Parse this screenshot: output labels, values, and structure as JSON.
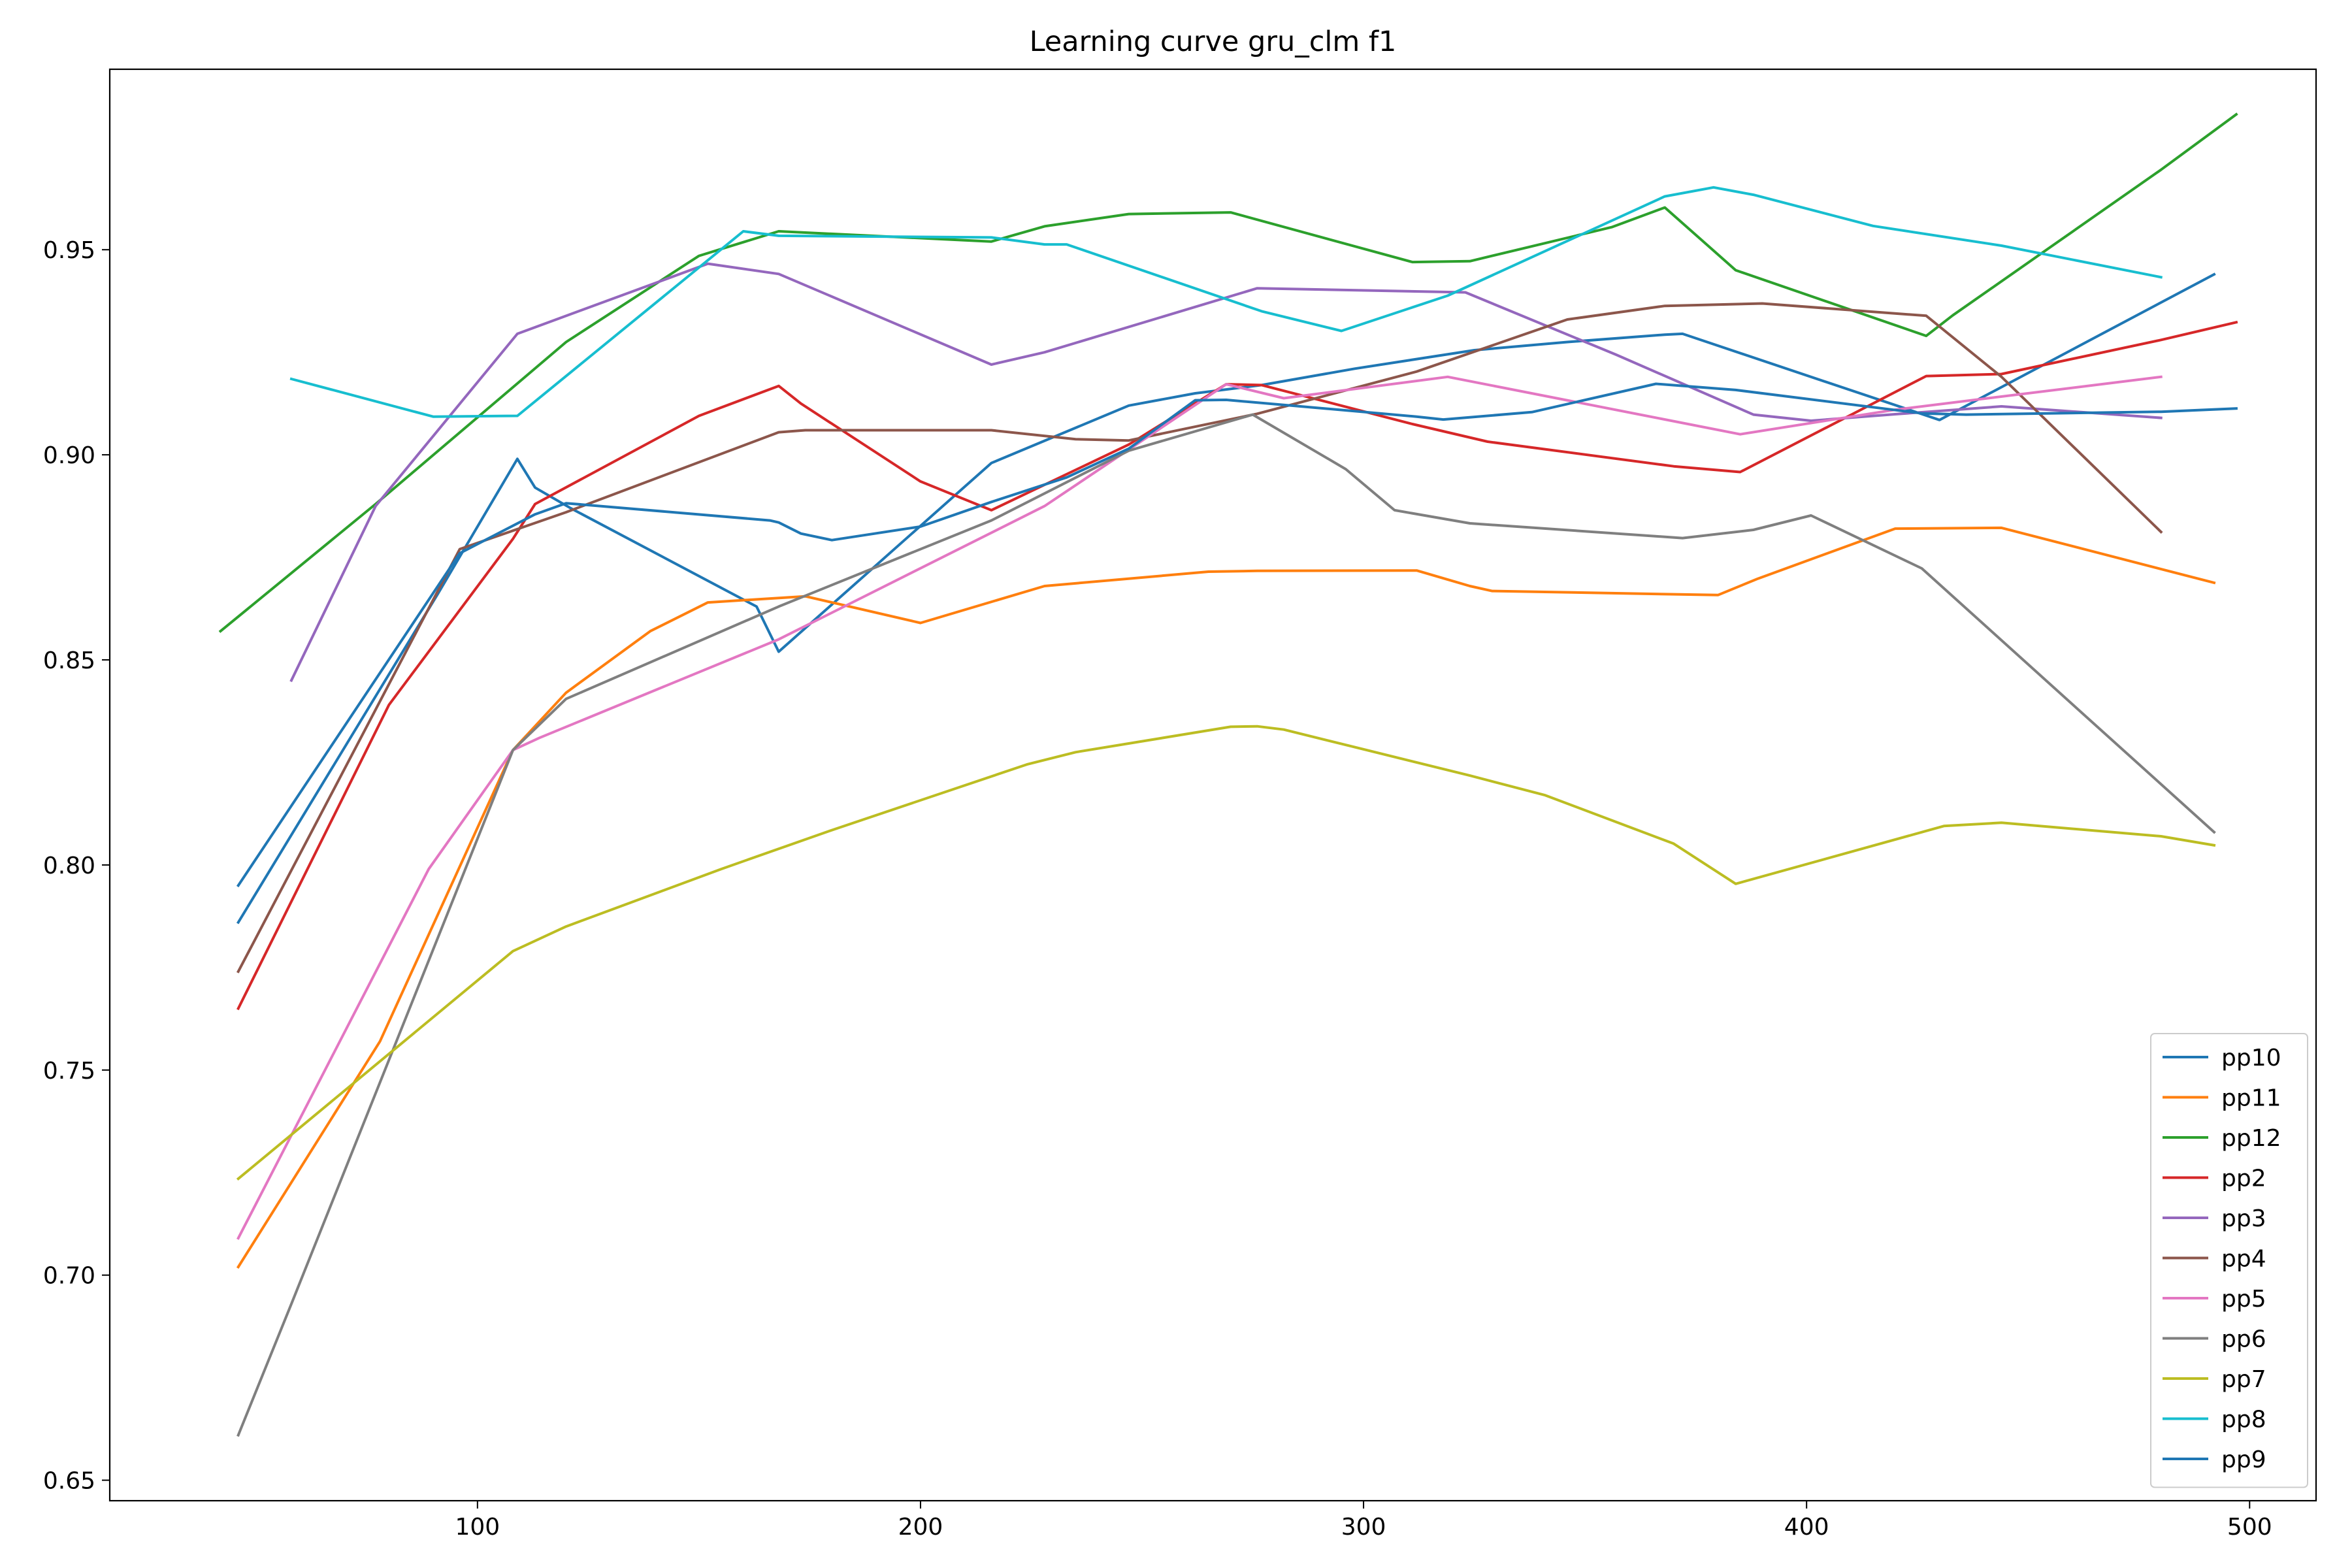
{
  "chart_data": {
    "type": "line",
    "title": "Learning curve gru_clm f1",
    "xlabel": "",
    "ylabel": "",
    "xlim": [
      17,
      515
    ],
    "ylim": [
      0.645,
      0.994
    ],
    "xticks": [
      100,
      200,
      300,
      400,
      500
    ],
    "yticks": [
      0.65,
      0.7,
      0.75,
      0.8,
      0.85,
      0.9,
      0.95
    ],
    "ytick_labels": [
      "0.65",
      "0.70",
      "0.75",
      "0.80",
      "0.85",
      "0.90",
      "0.95"
    ],
    "xtick_labels": [
      "100",
      "200",
      "300",
      "400",
      "500"
    ],
    "grid": false,
    "legend_position": "lower-right",
    "series": [
      {
        "name": "pp10",
        "color": "#1f77b4",
        "points": [
          [
            46,
            0.786
          ],
          [
            91,
            0.866
          ],
          [
            109,
            0.899
          ],
          [
            113,
            0.892
          ],
          [
            121,
            0.887
          ],
          [
            163,
            0.863
          ],
          [
            168,
            0.852
          ],
          [
            216,
            0.898
          ],
          [
            247,
            0.912
          ],
          [
            262,
            0.915
          ],
          [
            277,
            0.917
          ],
          [
            298,
            0.921
          ],
          [
            325,
            0.9255
          ],
          [
            346,
            0.9275
          ],
          [
            368,
            0.9293
          ],
          [
            372,
            0.9295
          ],
          [
            430,
            0.9085
          ],
          [
            492,
            0.944
          ]
        ]
      },
      {
        "name": "pp11",
        "color": "#ff7f0e",
        "points": [
          [
            46,
            0.702
          ],
          [
            78,
            0.757
          ],
          [
            108,
            0.828
          ],
          [
            120,
            0.842
          ],
          [
            139,
            0.857
          ],
          [
            152,
            0.864
          ],
          [
            174,
            0.8655
          ],
          [
            200,
            0.859
          ],
          [
            228,
            0.868
          ],
          [
            265,
            0.8715
          ],
          [
            276,
            0.8717
          ],
          [
            312,
            0.8718
          ],
          [
            324,
            0.868
          ],
          [
            329,
            0.8668
          ],
          [
            380,
            0.8658
          ],
          [
            389,
            0.8698
          ],
          [
            420,
            0.882
          ],
          [
            444,
            0.8822
          ],
          [
            492,
            0.8688
          ]
        ]
      },
      {
        "name": "pp12",
        "color": "#2ca02c",
        "points": [
          [
            42,
            0.857
          ],
          [
            77,
            0.888
          ],
          [
            120,
            0.9275
          ],
          [
            150,
            0.9485
          ],
          [
            168,
            0.9545
          ],
          [
            216,
            0.952
          ],
          [
            228,
            0.9557
          ],
          [
            247,
            0.9587
          ],
          [
            270,
            0.9591
          ],
          [
            311,
            0.947
          ],
          [
            324,
            0.9472
          ],
          [
            356,
            0.9555
          ],
          [
            368,
            0.9603
          ],
          [
            384,
            0.945
          ],
          [
            427,
            0.929
          ],
          [
            433,
            0.934
          ],
          [
            480,
            0.9695
          ],
          [
            497,
            0.983
          ]
        ]
      },
      {
        "name": "pp2",
        "color": "#d62728",
        "points": [
          [
            46,
            0.765
          ],
          [
            80,
            0.839
          ],
          [
            108,
            0.8795
          ],
          [
            113,
            0.888
          ],
          [
            150,
            0.9095
          ],
          [
            168,
            0.9168
          ],
          [
            173,
            0.9125
          ],
          [
            200,
            0.8935
          ],
          [
            216,
            0.8865
          ],
          [
            247,
            0.9025
          ],
          [
            269,
            0.9172
          ],
          [
            277,
            0.917
          ],
          [
            311,
            0.9075
          ],
          [
            328,
            0.9032
          ],
          [
            370,
            0.8972
          ],
          [
            385,
            0.8958
          ],
          [
            427,
            0.9192
          ],
          [
            444,
            0.9197
          ],
          [
            480,
            0.928
          ],
          [
            497,
            0.9323
          ]
        ]
      },
      {
        "name": "pp3",
        "color": "#9467bd",
        "points": [
          [
            58,
            0.845
          ],
          [
            77,
            0.8875
          ],
          [
            109,
            0.9295
          ],
          [
            152,
            0.9466
          ],
          [
            168,
            0.9441
          ],
          [
            216,
            0.922
          ],
          [
            228,
            0.925
          ],
          [
            276,
            0.9406
          ],
          [
            323,
            0.9396
          ],
          [
            357,
            0.9244
          ],
          [
            388,
            0.9098
          ],
          [
            401,
            0.9083
          ],
          [
            420,
            0.9099
          ],
          [
            444,
            0.9118
          ],
          [
            480,
            0.909
          ]
        ]
      },
      {
        "name": "pp4",
        "color": "#8c564b",
        "points": [
          [
            46,
            0.774
          ],
          [
            96,
            0.877
          ],
          [
            120,
            0.886
          ],
          [
            168,
            0.9055
          ],
          [
            174,
            0.906
          ],
          [
            216,
            0.906
          ],
          [
            235,
            0.9038
          ],
          [
            247,
            0.9035
          ],
          [
            276,
            0.91
          ],
          [
            312,
            0.9203
          ],
          [
            346,
            0.933
          ],
          [
            368,
            0.9363
          ],
          [
            390,
            0.9369
          ],
          [
            427,
            0.9339
          ],
          [
            444,
            0.919
          ],
          [
            480,
            0.8812
          ]
        ]
      },
      {
        "name": "pp5",
        "color": "#e377c2",
        "points": [
          [
            46,
            0.709
          ],
          [
            89,
            0.799
          ],
          [
            108,
            0.828
          ],
          [
            114,
            0.831
          ],
          [
            168,
            0.855
          ],
          [
            228,
            0.8875
          ],
          [
            269,
            0.9172
          ],
          [
            282,
            0.9138
          ],
          [
            319,
            0.919
          ],
          [
            385,
            0.905
          ],
          [
            420,
            0.911
          ],
          [
            480,
            0.919
          ]
        ]
      },
      {
        "name": "pp6",
        "color": "#7f7f7f",
        "points": [
          [
            46,
            0.661
          ],
          [
            58,
            0.693
          ],
          [
            108,
            0.828
          ],
          [
            120,
            0.8405
          ],
          [
            168,
            0.863
          ],
          [
            216,
            0.884
          ],
          [
            247,
            0.901
          ],
          [
            275,
            0.9098
          ],
          [
            296,
            0.8965
          ],
          [
            307,
            0.8865
          ],
          [
            324,
            0.8833
          ],
          [
            372,
            0.8797
          ],
          [
            388,
            0.8817
          ],
          [
            401,
            0.8852
          ],
          [
            426,
            0.8723
          ],
          [
            492,
            0.808
          ]
        ]
      },
      {
        "name": "pp7",
        "color": "#bcbd22",
        "points": [
          [
            46,
            0.7235
          ],
          [
            108,
            0.779
          ],
          [
            120,
            0.785
          ],
          [
            155,
            0.799
          ],
          [
            180,
            0.8085
          ],
          [
            224,
            0.8245
          ],
          [
            235,
            0.8275
          ],
          [
            270,
            0.8337
          ],
          [
            276,
            0.8338
          ],
          [
            282,
            0.833
          ],
          [
            324,
            0.8218
          ],
          [
            341,
            0.817
          ],
          [
            370,
            0.8052
          ],
          [
            384,
            0.7954
          ],
          [
            431,
            0.8095
          ],
          [
            444,
            0.8103
          ],
          [
            480,
            0.807
          ],
          [
            492,
            0.8048
          ]
        ]
      },
      {
        "name": "pp8",
        "color": "#17becf",
        "points": [
          [
            58,
            0.9185
          ],
          [
            90,
            0.9093
          ],
          [
            109,
            0.9095
          ],
          [
            160,
            0.9545
          ],
          [
            168,
            0.9534
          ],
          [
            216,
            0.953
          ],
          [
            228,
            0.9513
          ],
          [
            233,
            0.9513
          ],
          [
            277,
            0.935
          ],
          [
            295,
            0.9302
          ],
          [
            319,
            0.9388
          ],
          [
            368,
            0.963
          ],
          [
            379,
            0.9652
          ],
          [
            388,
            0.9634
          ],
          [
            415,
            0.9558
          ],
          [
            444,
            0.951
          ],
          [
            480,
            0.9433
          ]
        ]
      },
      {
        "name": "pp9",
        "color": "#1f77b4",
        "points": [
          [
            46,
            0.795
          ],
          [
            96,
            0.876
          ],
          [
            113,
            0.8855
          ],
          [
            120,
            0.8882
          ],
          [
            166,
            0.884
          ],
          [
            168,
            0.8835
          ],
          [
            173,
            0.8808
          ],
          [
            180,
            0.8792
          ],
          [
            200,
            0.8825
          ],
          [
            216,
            0.8885
          ],
          [
            233,
            0.8945
          ],
          [
            247,
            0.9015
          ],
          [
            262,
            0.9133
          ],
          [
            269,
            0.9134
          ],
          [
            312,
            0.9093
          ],
          [
            318,
            0.9086
          ],
          [
            338,
            0.9104
          ],
          [
            366,
            0.9173
          ],
          [
            384,
            0.9158
          ],
          [
            426,
            0.9101
          ],
          [
            436,
            0.9098
          ],
          [
            480,
            0.9105
          ],
          [
            497,
            0.9113
          ]
        ]
      }
    ]
  }
}
